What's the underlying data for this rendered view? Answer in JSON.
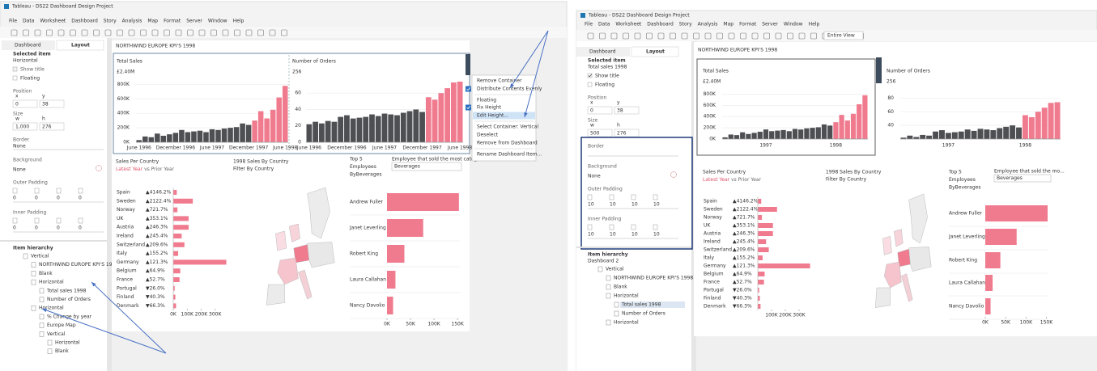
{
  "windows": [
    {
      "title": "Tableau - DS22 Dashboard Design Project",
      "menu": [
        "File",
        "Data",
        "Worksheet",
        "Dashboard",
        "Story",
        "Analysis",
        "Map",
        "Format",
        "Server",
        "Window",
        "Help"
      ],
      "tabs": [
        "Dashboard",
        "Layout"
      ],
      "pane": {
        "selected_label": "Selected item",
        "selected": "Horizontal",
        "show_title": "Show title",
        "show_title_checked": false,
        "floating": "Floating",
        "position": "Position",
        "x_label": "x",
        "y_label": "y",
        "x": 0,
        "y": 38,
        "size": "Size",
        "w_label": "w",
        "h_label": "h",
        "w": "1,000",
        "h": 276,
        "border": "Border",
        "border_value": "None",
        "background": "Background",
        "background_value": "None",
        "outer_padding": "Outer Padding",
        "outer": [
          0,
          0,
          0,
          0
        ],
        "inner_padding": "Inner Padding",
        "inner": [
          0,
          0,
          0,
          0
        ]
      },
      "hierarchy": {
        "title": "Item hierarchy",
        "items": [
          "Vertical",
          "NORTHWIND EUROPE KPI'S 19...",
          "Blank",
          "Horizontal",
          "Total sales 1998",
          "Number of Orders",
          "Horizontal",
          "% Change by year",
          "Europe Map",
          "Vertical",
          "Horizontal",
          "Blank"
        ]
      },
      "month_labels": [
        "June 1996",
        null,
        null,
        null,
        null,
        null,
        "December 1996",
        null,
        null,
        null,
        null,
        null,
        "June 1997",
        null,
        null,
        null,
        null,
        null,
        "December 1997",
        null,
        null,
        null,
        null,
        null,
        "June 1998"
      ],
      "sales_axis": {
        "ylim": [
          0,
          850000
        ],
        "yticks": [
          {
            "value": 0,
            "label": "0K"
          },
          {
            "value": 200000,
            "label": "200K"
          },
          {
            "value": 400000,
            "label": "400K"
          },
          {
            "value": 600000,
            "label": "600K"
          },
          {
            "value": 800000,
            "label": "800K"
          }
        ]
      },
      "orders_axis": {
        "ylim": [
          0,
          75
        ],
        "yticks": [
          0,
          20,
          40,
          60
        ]
      },
      "country_axis": {
        "xlim": [
          0,
          400000
        ],
        "xticks": [
          {
            "value": 0,
            "label": "0K"
          },
          {
            "value": 100000,
            "label": "100K"
          },
          {
            "value": 200000,
            "label": "200K"
          },
          {
            "value": 300000,
            "label": "300K"
          }
        ]
      },
      "employee_axis": {
        "xlim": [
          0,
          155000
        ],
        "xticks": [
          {
            "value": 0,
            "label": "0K"
          },
          {
            "value": 50000,
            "label": "50K"
          },
          {
            "value": 100000,
            "label": "100K"
          },
          {
            "value": 150000,
            "label": "150K"
          }
        ]
      },
      "employee_filter": "Employee that sold the most categ...",
      "context_menu": [
        {
          "label": "Remove Container"
        },
        {
          "label": "Distribute Contents Evenly",
          "checked": true
        },
        {
          "label": "Floating"
        },
        {
          "label": "Fix Height",
          "checked": true
        },
        {
          "label": "Edit Height...",
          "highlighted": true
        },
        {
          "label": "Select Container: Vertical"
        },
        {
          "label": "Deselect"
        },
        {
          "label": "Remove from Dashboard"
        },
        {
          "label": "Rename Dashboard Item..."
        }
      ]
    },
    {
      "title": "Tableau - DS22 Dashboard Design Project",
      "menu": [
        "File",
        "Data",
        "Worksheet",
        "Dashboard",
        "Story",
        "Analysis",
        "Map",
        "Format",
        "Server",
        "Window",
        "Help"
      ],
      "toolbar_view": "Entire View",
      "tabs": [
        "Dashboard",
        "Layout"
      ],
      "pane": {
        "selected_label": "Selected item",
        "selected": "Total sales 1998",
        "show_title": "Show title",
        "show_title_checked": true,
        "floating": "Floating",
        "position": "Position",
        "x_label": "x",
        "y_label": "y",
        "x": 0,
        "y": 38,
        "size": "Size",
        "w_label": "w",
        "h_label": "h",
        "w": 500,
        "h": 276,
        "border": "Border",
        "background": "Background",
        "background_value": "None",
        "outer_padding": "Outer Padding",
        "outer": [
          10,
          10,
          10,
          10
        ],
        "inner_padding": "Inner Padding",
        "inner": [
          10,
          10,
          10,
          10
        ]
      },
      "hierarchy": {
        "title": "Item hierarchy",
        "root": "Dashboard 2",
        "items": [
          "Vertical",
          "NORTHWIND EUROPE KPI'S 1998",
          "Blank",
          "Horizontal",
          "Total sales 1998",
          "Number of Orders",
          "Horizontal"
        ]
      },
      "month_labels": [
        null,
        null,
        null,
        null,
        null,
        null,
        null,
        "1997",
        null,
        null,
        null,
        null,
        null,
        null,
        null,
        null,
        null,
        null,
        null,
        "1998",
        null,
        null,
        null,
        null,
        null
      ],
      "sales_axis": {
        "ylim": [
          0,
          850000
        ],
        "yticks": [
          {
            "value": 0,
            "label": "0K"
          },
          {
            "value": 200000,
            "label": "200K"
          },
          {
            "value": 400000,
            "label": "400K"
          },
          {
            "value": 600000,
            "label": "600K"
          },
          {
            "value": 800000,
            "label": "800K"
          }
        ]
      },
      "orders_axis": {
        "ylim": [
          20,
          90
        ],
        "yticks": [
          40,
          60,
          80
        ]
      },
      "country_axis": {
        "xlim": [
          0,
          400000
        ],
        "xticks": [
          {
            "value": 100000,
            "label": "100K"
          },
          {
            "value": 200000,
            "label": "200K"
          },
          {
            "value": 300000,
            "label": "300K"
          }
        ]
      },
      "employee_axis": {
        "xlim": [
          0,
          155000
        ],
        "xticks": [
          {
            "value": 0,
            "label": "0K"
          },
          {
            "value": 50000,
            "label": "50K"
          },
          {
            "value": 100000,
            "label": "100K"
          },
          {
            "value": 150000,
            "label": "150K"
          }
        ]
      },
      "employee_filter": "Employee that sold the mo..."
    }
  ],
  "dashboard": {
    "title": "NORTHWIND EUROPE KPI'S 1998",
    "total_sales_title": "Total Sales",
    "total_sales": "£2.40M",
    "orders_title": "Number of Orders",
    "orders": "256",
    "months": {
      "sales": [
        30000,
        80000,
        70000,
        120000,
        90000,
        110000,
        130000,
        170000,
        140000,
        150000,
        160000,
        140000,
        180000,
        170000,
        190000,
        200000,
        210000,
        260000,
        240000,
        300000,
        430000,
        330000,
        450000,
        620000,
        780000
      ],
      "orders": [
        22,
        25,
        23,
        26,
        25,
        31,
        33,
        29,
        30,
        31,
        34,
        32,
        35,
        34,
        33,
        36,
        38,
        40,
        37,
        55,
        52,
        60,
        66,
        73,
        74
      ],
      "colors": [
        "#4e4f53",
        "#4e4f53",
        "#4e4f53",
        "#4e4f53",
        "#4e4f53",
        "#4e4f53",
        "#4e4f53",
        "#4e4f53",
        "#4e4f53",
        "#4e4f53",
        "#4e4f53",
        "#4e4f53",
        "#4e4f53",
        "#4e4f53",
        "#4e4f53",
        "#4e4f53",
        "#4e4f53",
        "#4e4f53",
        "#4e4f53",
        "#f07a8e",
        "#f07a8e",
        "#f07a8e",
        "#f07a8e",
        "#f07a8e",
        "#f07a8e"
      ]
    },
    "countries": {
      "title": "Sales Per Country",
      "subtitle": [
        "Latest Year",
        "vs Prior Year"
      ],
      "names": [
        "Spain",
        "Sweden",
        "Norway",
        "UK",
        "Austria",
        "Ireland",
        "Switzerland",
        "Italy",
        "Germany",
        "Belgium",
        "France",
        "Portugal",
        "Finland",
        "Denmark"
      ],
      "changes": [
        "▲4146.2%",
        "▲2122.4%",
        "▲721.7%",
        "▲353.1%",
        "▲246.3%",
        "▲245.4%",
        "▲209.6%",
        "▲155.2%",
        "▲121.3%",
        "▲64.9%",
        "▲52.7%",
        "▼26.0%",
        "▼40.3%",
        "▼66.3%"
      ],
      "values": [
        25000,
        140000,
        30000,
        110000,
        110000,
        60000,
        80000,
        35000,
        380000,
        50000,
        45000,
        10000,
        15000,
        20000
      ],
      "color": "#f07a8e"
    },
    "map": {
      "title": "1998 Sales By Country",
      "subtitle": "Filter By Country"
    },
    "employees": {
      "title": [
        "Top 5",
        "Employees",
        "ByBeverages"
      ],
      "filter_value": "Beverages",
      "names": [
        "Andrew Fuller",
        "Janet Leverling",
        "Robert King",
        "Laura Callahan",
        "Nancy Davolio"
      ],
      "values": [
        153000,
        77000,
        37000,
        18000,
        13000
      ],
      "color": "#f07a8e"
    }
  }
}
